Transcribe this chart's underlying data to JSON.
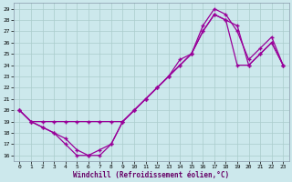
{
  "xlabel": "Windchill (Refroidissement éolien,°C)",
  "bg_color": "#cce8ec",
  "grid_color": "#aacccc",
  "line_color": "#990099",
  "xlim": [
    -0.5,
    23.5
  ],
  "ylim": [
    15.5,
    29.5
  ],
  "xticks": [
    0,
    1,
    2,
    3,
    4,
    5,
    6,
    7,
    8,
    9,
    10,
    11,
    12,
    13,
    14,
    15,
    16,
    17,
    18,
    19,
    20,
    21,
    22,
    23
  ],
  "yticks": [
    16,
    17,
    18,
    19,
    20,
    21,
    22,
    23,
    24,
    25,
    26,
    27,
    28,
    29
  ],
  "line1_x": [
    0,
    1,
    2,
    3,
    4,
    5,
    6,
    7,
    8,
    9,
    10,
    11,
    12,
    13,
    14,
    15,
    16,
    17,
    18,
    19,
    20,
    21,
    22,
    23
  ],
  "line1_y": [
    20,
    19,
    19,
    19,
    19,
    19,
    19,
    19,
    19,
    19,
    20,
    21,
    22,
    23,
    24,
    25,
    27,
    28.5,
    28,
    24,
    24,
    25,
    26,
    24
  ],
  "line2_x": [
    0,
    1,
    2,
    3,
    4,
    5,
    6,
    7,
    8,
    9,
    10,
    11,
    12,
    13,
    14,
    15,
    16,
    17,
    18,
    19,
    20,
    21,
    22,
    23
  ],
  "line2_y": [
    20,
    19,
    18.5,
    18,
    17,
    16,
    16,
    16.5,
    17,
    19,
    20,
    21,
    22,
    23,
    24.5,
    25,
    27.5,
    29,
    28.5,
    27,
    24.5,
    25.5,
    26.5,
    24
  ],
  "line3_x": [
    0,
    1,
    2,
    3,
    4,
    5,
    6,
    7,
    8,
    9,
    10,
    11,
    12,
    13,
    14,
    15,
    16,
    17,
    18,
    19,
    20,
    21,
    22,
    23
  ],
  "line3_y": [
    20,
    19,
    18.5,
    18,
    17.5,
    16.5,
    16,
    16,
    17,
    19,
    20,
    21,
    22,
    23,
    24,
    25,
    27,
    28.5,
    28,
    27.5,
    24,
    25,
    26,
    24
  ]
}
